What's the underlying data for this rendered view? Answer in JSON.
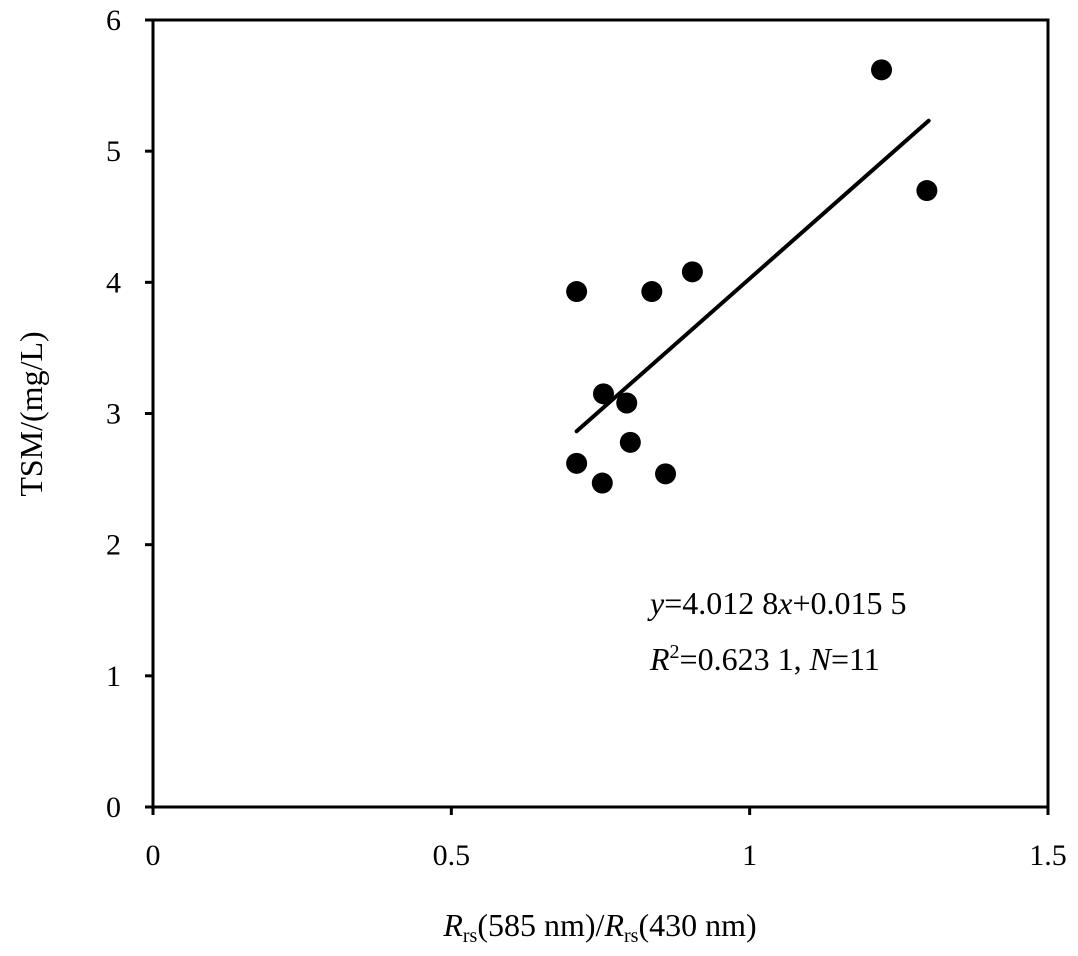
{
  "chart_data": {
    "type": "scatter",
    "title": "",
    "xlabel": {
      "parts": [
        "R",
        "rs",
        "(585 nm)/",
        "R",
        "rs",
        "(430 nm)"
      ]
    },
    "ylabel": "TSM/(mg/L)",
    "xlim": [
      0,
      1.5
    ],
    "ylim": [
      0,
      6
    ],
    "xticks": [
      0,
      0.5,
      1,
      1.5
    ],
    "xtick_labels": [
      "0",
      "0.5",
      "1",
      "1.5"
    ],
    "yticks": [
      0,
      1,
      2,
      3,
      4,
      5,
      6
    ],
    "ytick_labels": [
      "0",
      "1",
      "2",
      "3",
      "4",
      "5",
      "6"
    ],
    "grid": false,
    "points": [
      {
        "x": 0.71,
        "y": 3.93
      },
      {
        "x": 0.904,
        "y": 4.08
      },
      {
        "x": 0.836,
        "y": 3.93
      },
      {
        "x": 0.755,
        "y": 3.15
      },
      {
        "x": 0.794,
        "y": 3.08
      },
      {
        "x": 0.8,
        "y": 2.78
      },
      {
        "x": 0.71,
        "y": 2.62
      },
      {
        "x": 0.753,
        "y": 2.47
      },
      {
        "x": 0.859,
        "y": 2.54
      },
      {
        "x": 1.221,
        "y": 5.62
      },
      {
        "x": 1.297,
        "y": 4.7
      }
    ],
    "trendline": {
      "slope": 4.0128,
      "intercept": 0.0155,
      "x_range": [
        0.71,
        1.3
      ]
    },
    "annotation": {
      "line1": [
        "y",
        "=4.012 8",
        "x",
        "+0.015 5"
      ],
      "line2": [
        "R",
        "2",
        "=0.623 1, ",
        "N",
        "=11"
      ]
    }
  }
}
